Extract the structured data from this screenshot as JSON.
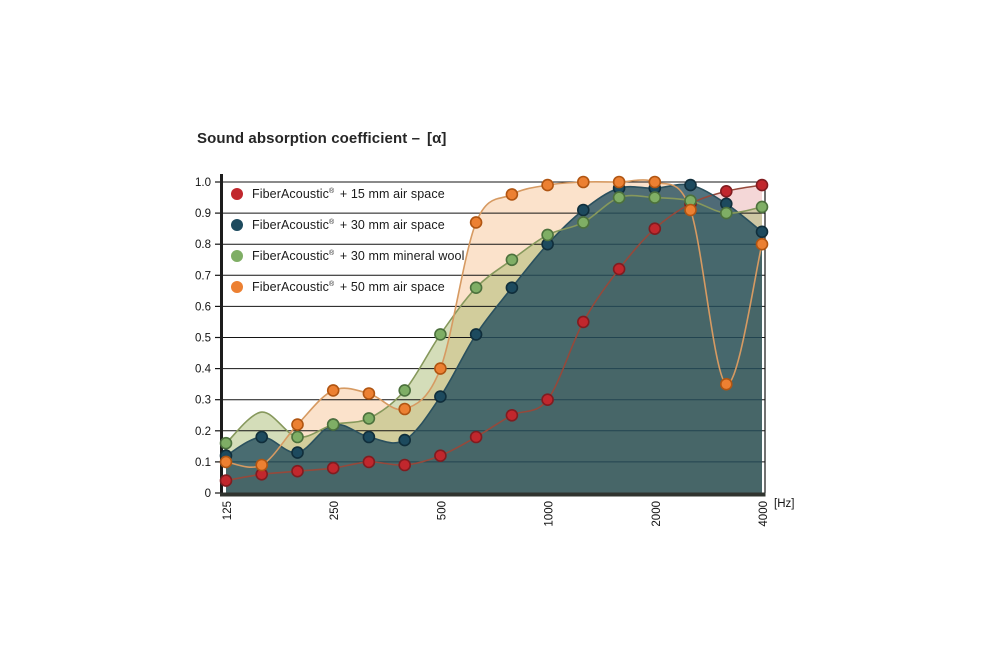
{
  "page": {
    "background": "#ffffff"
  },
  "chart_data": {
    "type": "area",
    "title": "Sound absorption coefficient –",
    "title_symbol": "[α]",
    "x_categories": [
      125,
      160,
      200,
      250,
      315,
      400,
      500,
      630,
      800,
      1000,
      1250,
      1600,
      2000,
      2500,
      3150,
      4000
    ],
    "x_tick_labels": [
      "125",
      "250",
      "500",
      "1000",
      "2000",
      "4000"
    ],
    "x_tick_indices": [
      0,
      3,
      6,
      9,
      12,
      15
    ],
    "x_unit": "[Hz]",
    "x_scale": "log-third-octave",
    "ylim": [
      0,
      1.0
    ],
    "yticks": [
      "0",
      "0.1",
      "0.2",
      "0.3",
      "0.4",
      "0.5",
      "0.6",
      "0.7",
      "0.8",
      "0.9",
      "1.0"
    ],
    "grid": "horizontal-black-lines",
    "legend_position": "top-left-inside",
    "series": [
      {
        "id": "fa-15-air",
        "name": "FiberAcoustic® + 15 mm air space",
        "values": [
          0.04,
          0.06,
          0.07,
          0.08,
          0.1,
          0.09,
          0.12,
          0.18,
          0.25,
          0.3,
          0.55,
          0.72,
          0.85,
          0.93,
          0.97,
          0.99
        ],
        "dot_color": "#c1272d",
        "dot_stroke": "#801c20",
        "line_color": "#95493b",
        "fill_color": "rgba(205,75,75,0.22)",
        "hidden_markers": []
      },
      {
        "id": "fa-30-air",
        "name": "FiberAcoustic® + 30 mm air space",
        "values": [
          0.12,
          0.18,
          0.13,
          0.22,
          0.18,
          0.17,
          0.31,
          0.51,
          0.66,
          0.8,
          0.91,
          0.98,
          0.98,
          0.99,
          0.93,
          0.84
        ],
        "dot_color": "#1d4a5e",
        "dot_stroke": "#102e3b",
        "line_color": "#2a505e",
        "fill_color": "rgba(38,80,95,0.80)",
        "hidden_markers": []
      },
      {
        "id": "fa-30-wool",
        "name": "FiberAcoustic® + 30 mm mineral wool",
        "values": [
          0.16,
          0.26,
          0.18,
          0.22,
          0.24,
          0.33,
          0.51,
          0.66,
          0.75,
          0.83,
          0.87,
          0.95,
          0.95,
          0.94,
          0.9,
          0.92
        ],
        "dot_color": "#7fae65",
        "dot_stroke": "#4c713d",
        "line_color": "#86985c",
        "fill_color": "rgba(160,180,100,0.45)",
        "hidden_markers": [
          1
        ]
      },
      {
        "id": "fa-50-air",
        "name": "FiberAcoustic® + 50 mm air space",
        "values": [
          0.1,
          0.09,
          0.22,
          0.33,
          0.32,
          0.27,
          0.4,
          0.87,
          0.96,
          0.99,
          1.0,
          1.0,
          1.0,
          0.91,
          0.35,
          0.8
        ],
        "dot_color": "#ec8032",
        "dot_stroke": "#b05512",
        "line_color": "#d69a62",
        "fill_color": "rgba(240,150,70,0.28)",
        "hidden_markers": []
      }
    ]
  },
  "legend": {
    "items": [
      {
        "brand": "FiberAcoustic",
        "reg": "®",
        "suffix": "+ 15 mm air space"
      },
      {
        "brand": "FiberAcoustic",
        "reg": "®",
        "suffix": "+ 30 mm air space"
      },
      {
        "brand": "FiberAcoustic",
        "reg": "®",
        "suffix": "+ 30 mm mineral wool"
      },
      {
        "brand": "FiberAcoustic",
        "reg": "®",
        "suffix": "+ 50 mm air space"
      }
    ]
  },
  "axis": {
    "unit_label": "[Hz]"
  }
}
